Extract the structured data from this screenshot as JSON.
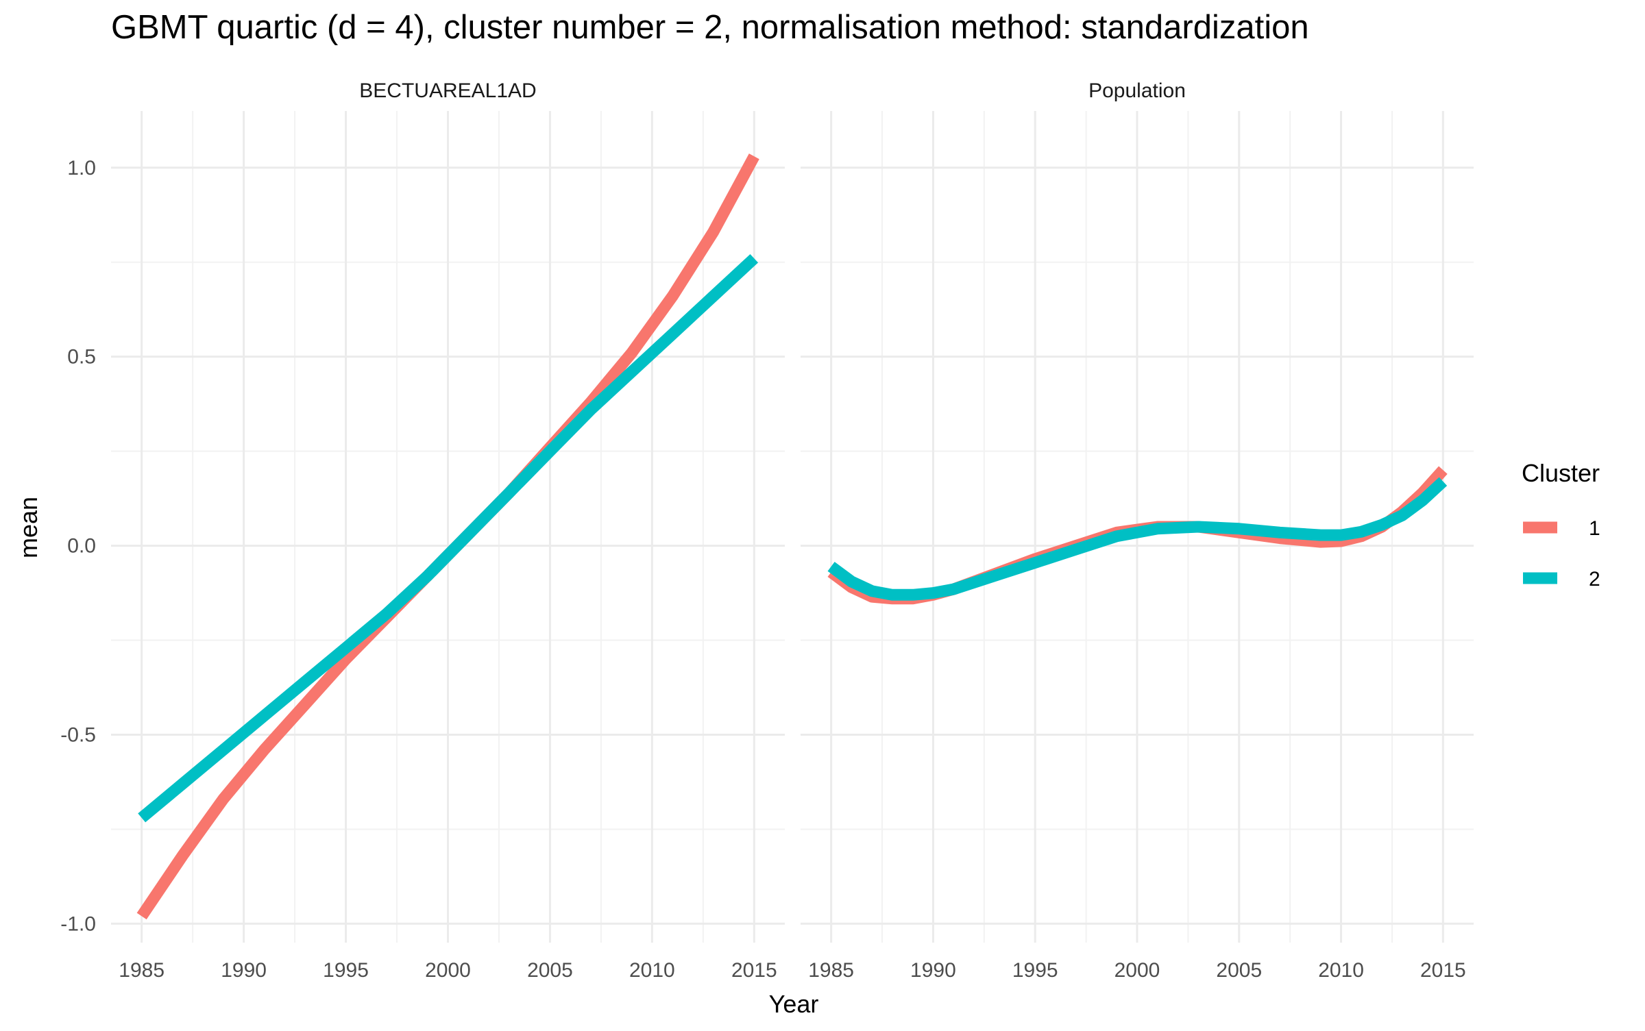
{
  "chart_data": {
    "type": "line",
    "title": "GBMT quartic (d = 4), cluster number = 2, normalisation method: standardization",
    "xlabel": "Year",
    "ylabel": "mean",
    "xlim": [
      1983.5,
      2016.5
    ],
    "ylim": [
      -1.05,
      1.15
    ],
    "x_ticks": [
      1985,
      1990,
      1995,
      2000,
      2005,
      2010,
      2015
    ],
    "y_ticks": [
      -1.0,
      -0.5,
      0.0,
      0.5,
      1.0
    ],
    "y_tick_labels": [
      "-1.0",
      "-0.5",
      "0.0",
      "0.5",
      "1.0"
    ],
    "grid": true,
    "legend": {
      "title": "Cluster",
      "position": "right",
      "entries": [
        {
          "label": "1",
          "color": "#F8766D"
        },
        {
          "label": "2",
          "color": "#00BFC4"
        }
      ]
    },
    "panels": [
      {
        "title": "BECTUAREAL1AD",
        "x": [
          1985,
          1987,
          1989,
          1991,
          1993,
          1995,
          1997,
          1999,
          2001,
          2003,
          2005,
          2007,
          2009,
          2011,
          2013,
          2015
        ],
        "series": [
          {
            "name": "1",
            "color": "#F8766D",
            "values": [
              -0.98,
              -0.82,
              -0.67,
              -0.54,
              -0.42,
              -0.3,
              -0.19,
              -0.08,
              0.03,
              0.14,
              0.26,
              0.38,
              0.51,
              0.66,
              0.83,
              1.03
            ]
          },
          {
            "name": "2",
            "color": "#00BFC4",
            "values": [
              -0.72,
              -0.63,
              -0.54,
              -0.45,
              -0.36,
              -0.27,
              -0.18,
              -0.08,
              0.03,
              0.14,
              0.25,
              0.36,
              0.46,
              0.56,
              0.66,
              0.76
            ]
          }
        ]
      },
      {
        "title": "Population",
        "x": [
          1985,
          1986,
          1987,
          1988,
          1989,
          1990,
          1991,
          1993,
          1995,
          1997,
          1999,
          2001,
          2003,
          2005,
          2007,
          2009,
          2010,
          2011,
          2012,
          2013,
          2014,
          2015
        ],
        "series": [
          {
            "name": "1",
            "color": "#F8766D",
            "values": [
              -0.07,
              -0.11,
              -0.135,
              -0.14,
              -0.14,
              -0.13,
              -0.115,
              -0.075,
              -0.035,
              0.0,
              0.035,
              0.05,
              0.05,
              0.035,
              0.02,
              0.01,
              0.012,
              0.025,
              0.05,
              0.09,
              0.14,
              0.2
            ]
          },
          {
            "name": "2",
            "color": "#00BFC4",
            "values": [
              -0.055,
              -0.095,
              -0.12,
              -0.13,
              -0.13,
              -0.125,
              -0.115,
              -0.08,
              -0.045,
              -0.01,
              0.025,
              0.045,
              0.05,
              0.045,
              0.035,
              0.028,
              0.028,
              0.037,
              0.055,
              0.08,
              0.12,
              0.17
            ]
          }
        ]
      }
    ]
  }
}
